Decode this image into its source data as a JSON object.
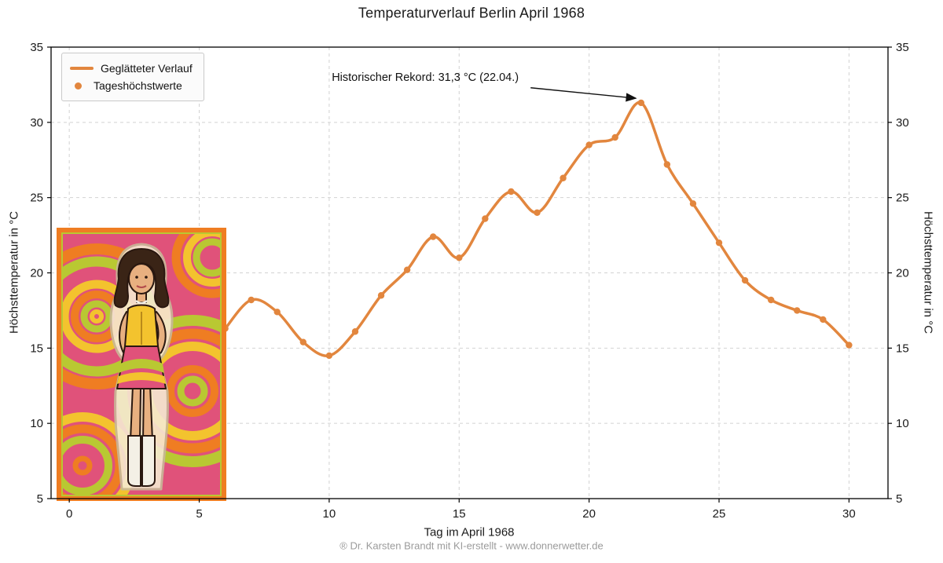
{
  "figure": {
    "footer": "® Dr. Karsten Brandt mit KI-erstellt - www.donnerwetter.de"
  },
  "inset": {
    "description": "psychedelic 1960s pop-art poster of a woman in mini dress and white go-go boots",
    "colors": [
      "#e0527a",
      "#ef7d22",
      "#b9c832",
      "#f3c32e"
    ]
  },
  "chart_data": {
    "type": "line",
    "title": "Temperaturverlauf Berlin April 1968",
    "xlabel": "Tag im April 1968",
    "ylabel_left": "Höchsttemperatur in °C",
    "ylabel_right": "Höchsttemperatur in °C",
    "xlim": [
      -0.7,
      31.5
    ],
    "ylim": [
      5,
      35
    ],
    "xticks": [
      0,
      5,
      10,
      15,
      20,
      25,
      30
    ],
    "yticks": [
      5,
      10,
      15,
      20,
      25,
      30,
      35
    ],
    "grid": true,
    "line_color": "#e2863e",
    "legend": {
      "position": "upper-left",
      "entries": [
        {
          "label": "Geglätteter Verlauf",
          "type": "line"
        },
        {
          "label": "Tageshöchstwerte",
          "type": "marker"
        }
      ]
    },
    "series": [
      {
        "name": "Tageshöchstwerte",
        "x": [
          6,
          7,
          8,
          9,
          10,
          11,
          12,
          13,
          14,
          15,
          16,
          17,
          18,
          19,
          20,
          21,
          22,
          23,
          24,
          25,
          26,
          27,
          28,
          29,
          30
        ],
        "y": [
          16.3,
          18.2,
          17.4,
          15.4,
          14.5,
          16.1,
          18.5,
          20.2,
          22.4,
          21.0,
          23.6,
          25.4,
          24.0,
          26.3,
          28.5,
          29.0,
          31.3,
          27.2,
          24.6,
          22.0,
          19.5,
          18.2,
          17.5,
          16.9,
          15.2
        ]
      }
    ],
    "annotation": {
      "text": "Historischer Rekord: 31,3 °C (22.04.)",
      "text_pos": [
        10.1,
        32.75
      ],
      "arrow_from": [
        17.75,
        32.3
      ],
      "arrow_to": [
        21.8,
        31.6
      ],
      "record_value": 31.3,
      "record_day": 22
    }
  }
}
